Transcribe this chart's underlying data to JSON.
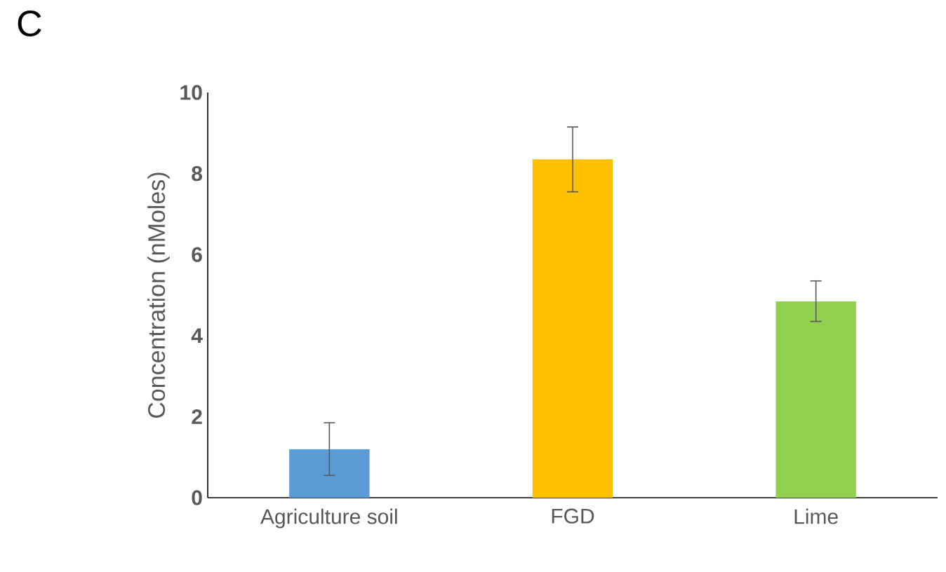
{
  "chart_data": {
    "type": "bar",
    "ylabel": "Concentration (nMoles)",
    "categories": [
      "Agriculture soil",
      "FGD",
      "Lime"
    ],
    "values": [
      1.2,
      8.35,
      4.85
    ],
    "errors": [
      0.65,
      0.8,
      0.5
    ],
    "colors": [
      "#5b9bd5",
      "#ffc000",
      "#92d050"
    ],
    "ylim": [
      0,
      10
    ],
    "yticks": [
      0,
      2,
      4,
      6,
      8,
      10
    ],
    "grid": false,
    "annotations": [
      "C"
    ]
  }
}
